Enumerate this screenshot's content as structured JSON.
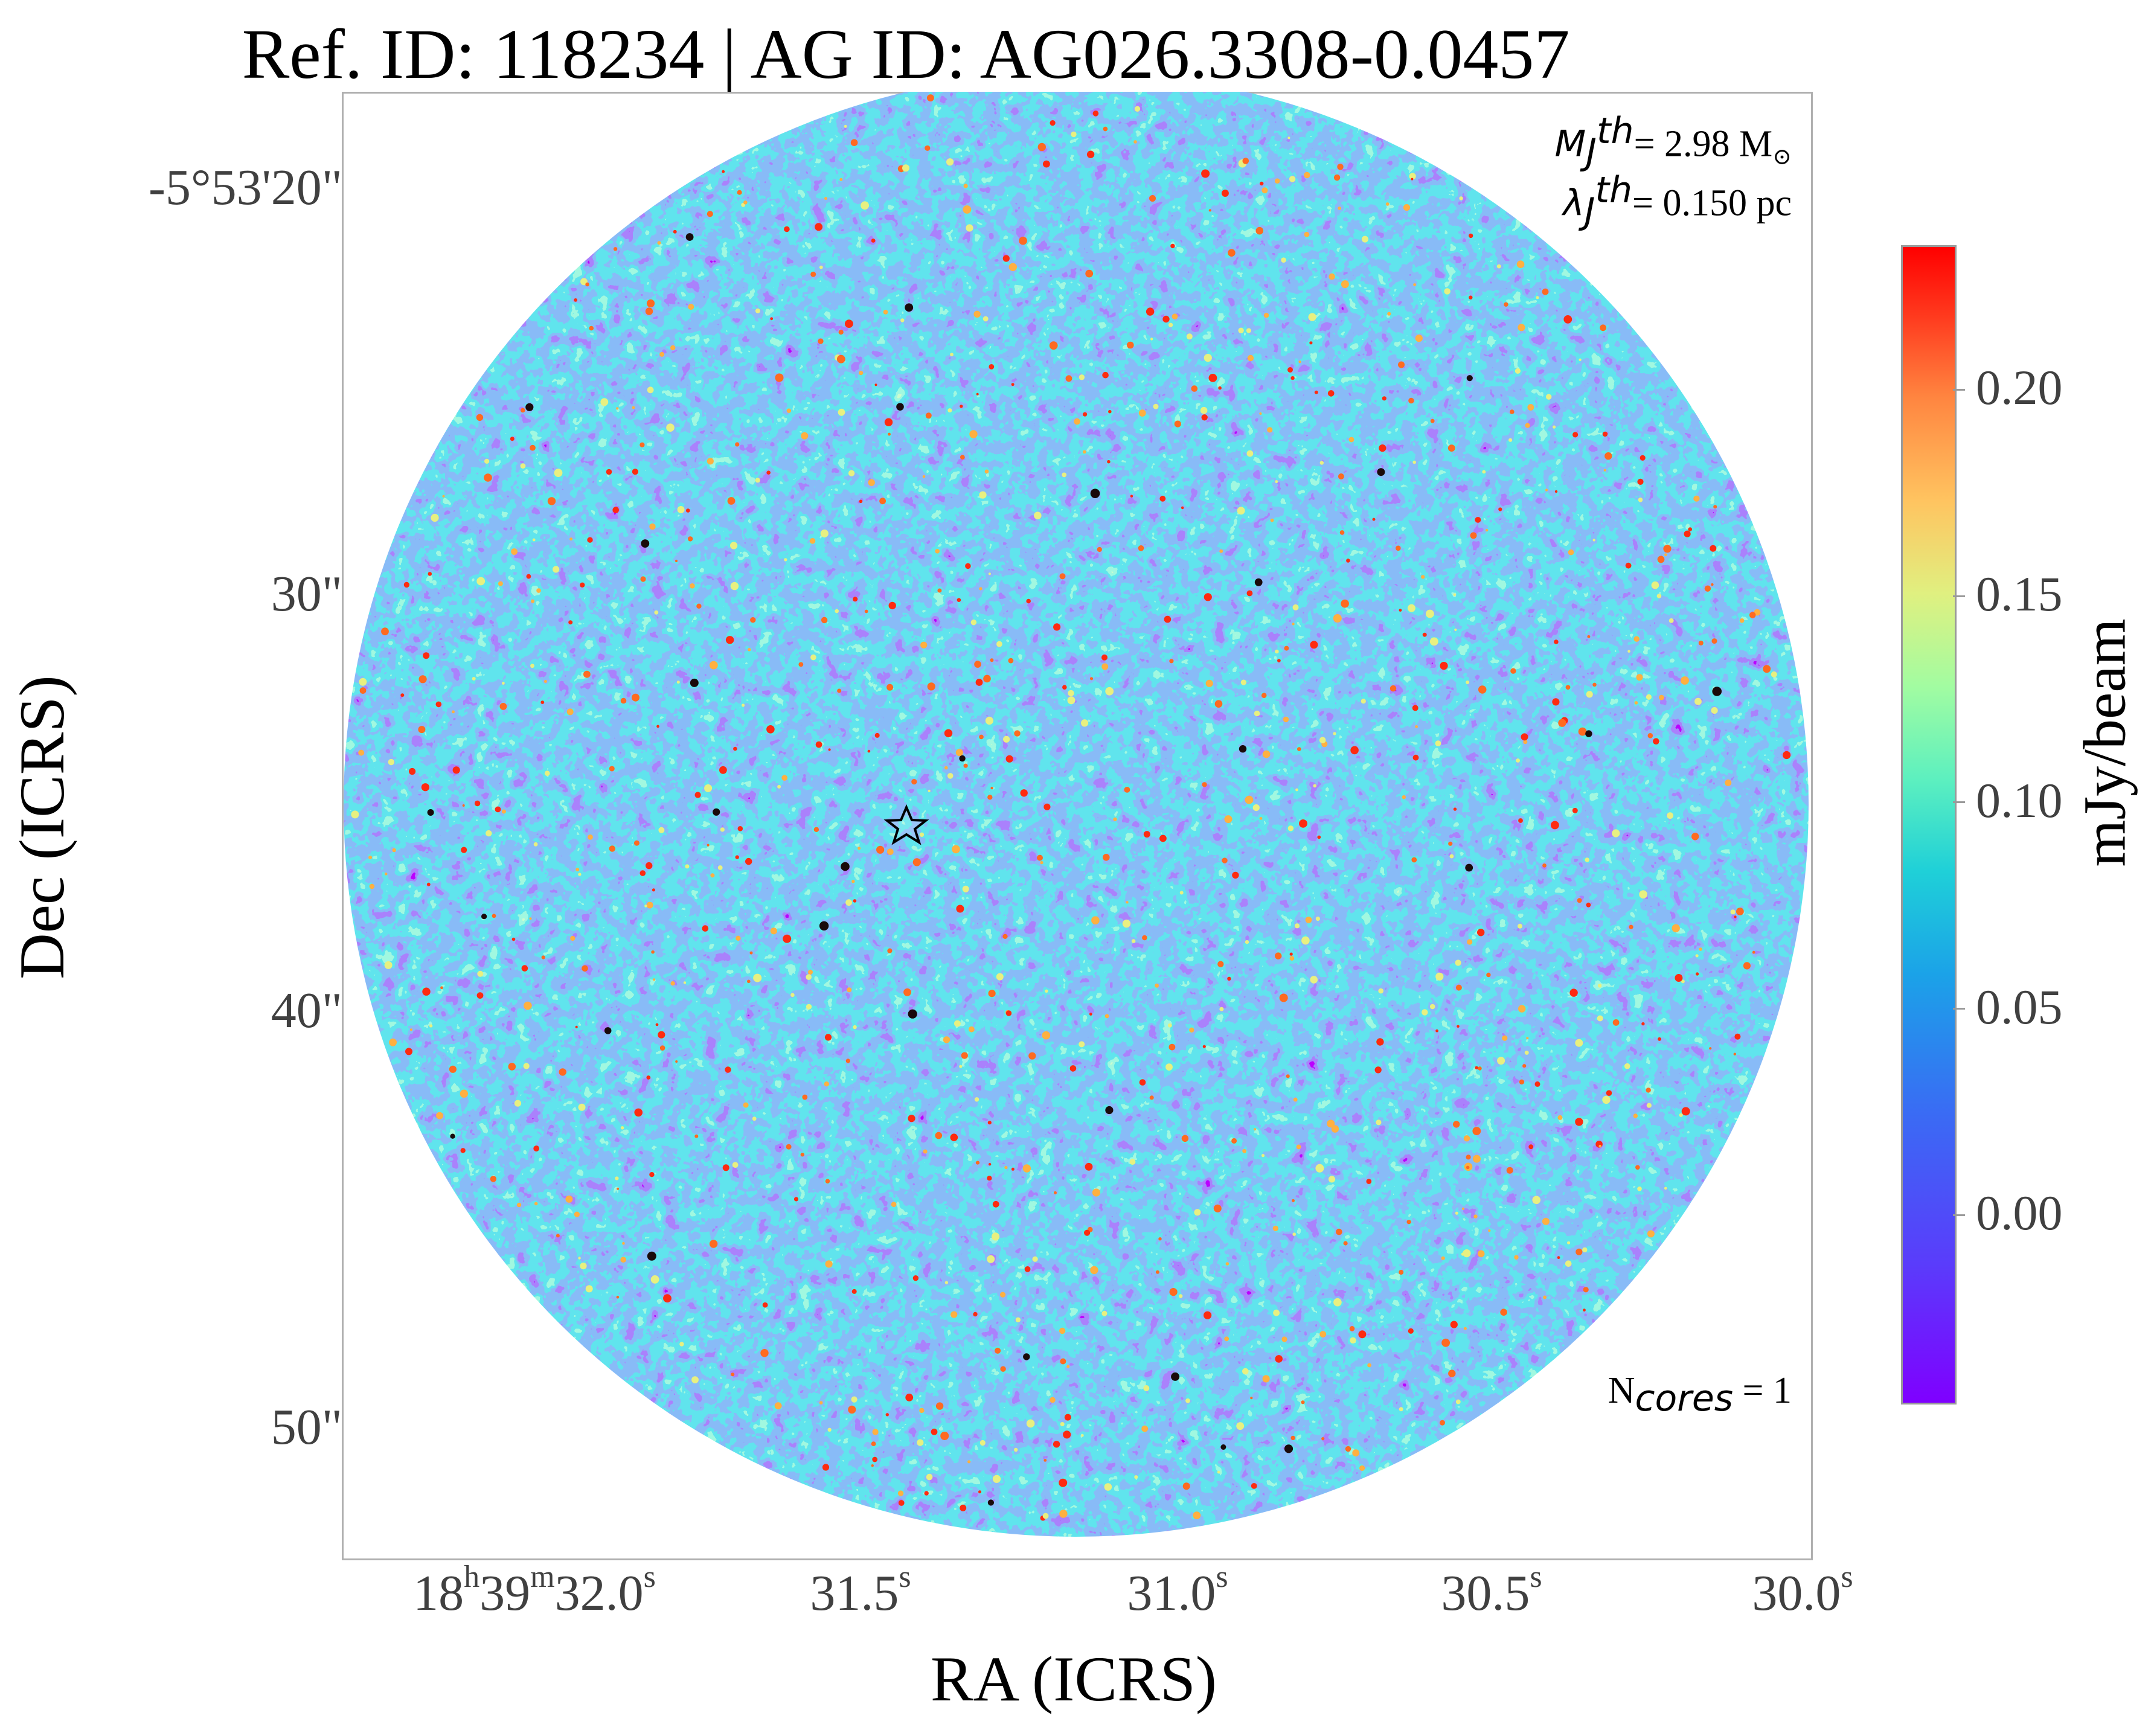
{
  "chart_data": {
    "type": "heatmap",
    "title": "Ref. ID: 118234 | AG ID: AG026.3308-0.0457",
    "xlabel": "RA (ICRS)",
    "ylabel": "Dec (ICRS)",
    "x_ticks": [
      {
        "h": "18",
        "h_unit": "h",
        "m": "39",
        "m_unit": "m",
        "s": "32.0",
        "s_unit": "s"
      },
      {
        "s": "31.5",
        "s_unit": "s"
      },
      {
        "s": "31.0",
        "s_unit": "s"
      },
      {
        "s": "30.5",
        "s_unit": "s"
      },
      {
        "s": "30.0",
        "s_unit": "s"
      }
    ],
    "y_ticks": [
      "-5°53'20\"",
      "30\"",
      "40\"",
      "50\""
    ],
    "colorbar": {
      "label": "mJy/beam",
      "colormap": "rainbow",
      "range": [
        -0.045,
        0.235
      ],
      "ticks": [
        0.0,
        0.05,
        0.1,
        0.15,
        0.2
      ],
      "tick_labels": [
        "0.00",
        "0.05",
        "0.10",
        "0.15",
        "0.20"
      ]
    },
    "field": "circular primary beam, noise-dominated emission",
    "marker": {
      "shape": "star",
      "color": "#ffffff"
    },
    "annotations": {
      "mass_symbol": "M",
      "mass_sub": "J",
      "mass_sup": "th",
      "mass_value": "= 2.98 M",
      "mass_unit_symbol": "⊙",
      "length_symbol": "λ",
      "length_sub": "J",
      "length_sup": "th",
      "length_value": "= 0.150 pc",
      "ncores_symbol": "N",
      "ncores_sub": "cores",
      "ncores_value": " = 1"
    },
    "grid": false
  }
}
